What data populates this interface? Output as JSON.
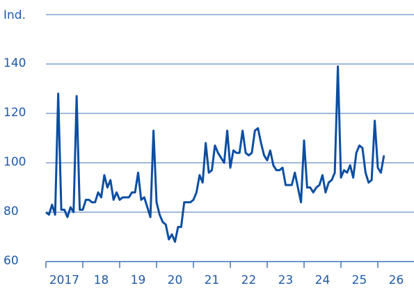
{
  "chart_data": {
    "type": "line",
    "ylabel": "Ind.",
    "ylim": [
      60,
      160
    ],
    "yticks": [
      60,
      80,
      100,
      120,
      140
    ],
    "xlim": [
      2017,
      2027
    ],
    "xticks": [
      {
        "value": 2017,
        "label": "2017"
      },
      {
        "value": 2018,
        "label": "18"
      },
      {
        "value": 2019,
        "label": "19"
      },
      {
        "value": 2020,
        "label": "20"
      },
      {
        "value": 2021,
        "label": "21"
      },
      {
        "value": 2022,
        "label": "22"
      },
      {
        "value": 2023,
        "label": "23"
      },
      {
        "value": 2024,
        "label": "24"
      },
      {
        "value": 2025,
        "label": "25"
      },
      {
        "value": 2026,
        "label": "26"
      }
    ],
    "grid": true,
    "series": [
      {
        "color": "#0b4ea2",
        "x": [
          2017,
          2017.083,
          2017.167,
          2017.25,
          2017.333,
          2017.417,
          2017.5,
          2017.583,
          2017.667,
          2017.75,
          2017.833,
          2017.917,
          2018,
          2018.083,
          2018.167,
          2018.25,
          2018.333,
          2018.417,
          2018.5,
          2018.583,
          2018.667,
          2018.75,
          2018.833,
          2018.917,
          2019,
          2019.083,
          2019.167,
          2019.25,
          2019.333,
          2019.417,
          2019.5,
          2019.583,
          2019.667,
          2019.75,
          2019.833,
          2019.917,
          2020,
          2020.083,
          2020.167,
          2020.25,
          2020.333,
          2020.417,
          2020.5,
          2020.583,
          2020.667,
          2020.75,
          2020.833,
          2020.917,
          2021,
          2021.083,
          2021.167,
          2021.25,
          2021.333,
          2021.417,
          2021.5,
          2021.583,
          2021.667,
          2021.75,
          2021.833,
          2021.917,
          2022,
          2022.083,
          2022.167,
          2022.25,
          2022.333,
          2022.417,
          2022.5,
          2022.583,
          2022.667,
          2022.75,
          2022.833,
          2022.917,
          2023,
          2023.083,
          2023.167,
          2023.25,
          2023.333,
          2023.417,
          2023.5,
          2023.583,
          2023.667,
          2023.75,
          2023.833,
          2023.917,
          2024,
          2024.083,
          2024.167,
          2024.25,
          2024.333,
          2024.417,
          2024.5,
          2024.583,
          2024.667,
          2024.75,
          2024.833,
          2024.917,
          2025,
          2025.083,
          2025.167,
          2025.25,
          2025.333,
          2025.417,
          2025.5,
          2025.583,
          2025.667,
          2025.75,
          2025.833,
          2025.917,
          2026,
          2026.083,
          2026.167
        ],
        "values": [
          80,
          79,
          83,
          79,
          128,
          81,
          81,
          78,
          82,
          80,
          127,
          81,
          81,
          85,
          85,
          84,
          84,
          88,
          86,
          95,
          90,
          93,
          85,
          88,
          85,
          86,
          86,
          86,
          88,
          88,
          96,
          85,
          86,
          82,
          78,
          113,
          84,
          79,
          76,
          75,
          69,
          71,
          68,
          74,
          74,
          84,
          84,
          84,
          85,
          88,
          95,
          92,
          108,
          96,
          97,
          107,
          104,
          102,
          100,
          113,
          98,
          105,
          104,
          104,
          113,
          104,
          103,
          104,
          113,
          114,
          108,
          103,
          101,
          105,
          99,
          97,
          97,
          98,
          91,
          91,
          91,
          96,
          90,
          84,
          109,
          90,
          90,
          88,
          90,
          91,
          95,
          88,
          92,
          93,
          96,
          139,
          94,
          97,
          96,
          99,
          94,
          104,
          107,
          106,
          96,
          92,
          93,
          117,
          98,
          96,
          103
        ]
      }
    ]
  }
}
